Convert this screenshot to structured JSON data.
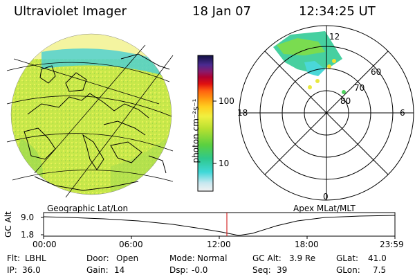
{
  "header": {
    "title": "Ultraviolet Imager",
    "date": "18 Jan 07",
    "time": "12:34:25 UT"
  },
  "colorbar": {
    "unit_label": "photon cm⁻²s⁻¹",
    "ticks": [
      "100",
      "10"
    ]
  },
  "polar": {
    "mlt_labels": {
      "top": "12",
      "left": "18",
      "right": "6",
      "bottom": "0"
    },
    "lat_labels": [
      "60",
      "70",
      "80"
    ]
  },
  "projections": {
    "left": "Geographic Lat/Lon",
    "right": "Apex MLat/MLT"
  },
  "altitude_plot": {
    "axis_title": "GC Alt",
    "y_ticks": [
      "9.0",
      "1.8"
    ],
    "x_ticks": [
      "00:00",
      "06:00",
      "12:00",
      "18:00",
      "23:59"
    ],
    "current_time_marker_color": "#cc0000"
  },
  "status": {
    "filter_label": "Flt:",
    "filter_value": "LBHL",
    "door_label": "Door:",
    "door_value": "Open",
    "mode_label": "Mode:",
    "mode_value": "Normal",
    "gcalt_label": "GC Alt:",
    "gcalt_value": "3.9 Re",
    "glat_label": "GLat:",
    "glat_value": "41.0",
    "ip_label": "IP:",
    "ip_value": "36.0",
    "gain_label": "Gain:",
    "gain_value": "14",
    "dsp_label": "Dsp:",
    "dsp_value": "-0.0",
    "seq_label": "Seq:",
    "seq_value": "39",
    "glon_label": "GLon:",
    "glon_value": "7.5"
  }
}
